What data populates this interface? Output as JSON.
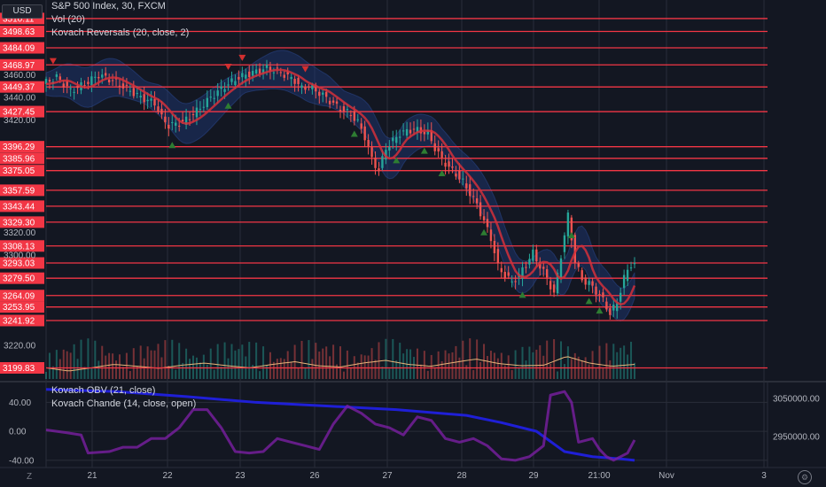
{
  "header": {
    "currency": "USD",
    "legend": {
      "symbol": "S&P 500 Index, 30, FXCM",
      "volume": "Vol (20)",
      "indicator": "Kovach Reversals (20, close, 2)"
    }
  },
  "lower_pane": {
    "legend": {
      "obv": "Kovach OBV (21, close)",
      "chande": "Kovach Chande (14, close, open)"
    }
  },
  "controls": {
    "zoom_icon": "Z",
    "settings_icon": "settings-gear-icon"
  },
  "colors": {
    "background": "#131722",
    "grid": "#2a2e39",
    "level_line": "#f23645",
    "candle_up": "#26a69a",
    "candle_down": "#ef5350",
    "band_fill": "#1e3a7a",
    "moving_average": "#d4303a",
    "volume_up": "#26a69a",
    "volume_down": "#ef5350",
    "volume_ma": "#e8b478",
    "signal_up": "#2e7d32",
    "signal_down": "#d32f2f",
    "obv_line": "#1f1fd6",
    "chande_line": "#7b1fa2"
  },
  "chart_data": [
    {
      "type": "candlestick",
      "y_ticks": [
        "3460.00",
        "3440.00",
        "3420.00",
        "3320.00",
        "3300.00",
        "3220.00"
      ],
      "y_range": [
        3190,
        3525
      ],
      "level_lines": [
        {
          "label": "3510.11",
          "value": 3510.11
        },
        {
          "label": "3498.63",
          "value": 3498.63
        },
        {
          "label": "3484.09",
          "value": 3484.09
        },
        {
          "label": "3468.97",
          "value": 3468.97
        },
        {
          "label": "3449.37",
          "value": 3449.37
        },
        {
          "label": "3427.45",
          "value": 3427.45
        },
        {
          "label": "3396.29",
          "value": 3396.29
        },
        {
          "label": "3385.96",
          "value": 3385.96
        },
        {
          "label": "3375.05",
          "value": 3375.05
        },
        {
          "label": "3357.59",
          "value": 3357.59
        },
        {
          "label": "3343.44",
          "value": 3343.44
        },
        {
          "label": "3329.30",
          "value": 3329.3
        },
        {
          "label": "3308.13",
          "value": 3308.13
        },
        {
          "label": "3293.03",
          "value": 3293.03
        },
        {
          "label": "3279.50",
          "value": 3279.5
        },
        {
          "label": "3264.09",
          "value": 3264.09
        },
        {
          "label": "3253.95",
          "value": 3253.95
        },
        {
          "label": "3241.92",
          "value": 3241.92
        },
        {
          "label": "3199.83",
          "value": 3199.83
        }
      ],
      "x_ticks": [
        "21",
        "22",
        "23",
        "26",
        "27",
        "28",
        "29",
        "21:00",
        "Nov",
        "3"
      ],
      "close_path": [
        [
          0,
          3452
        ],
        [
          4,
          3458
        ],
        [
          8,
          3446
        ],
        [
          12,
          3452
        ],
        [
          16,
          3460
        ],
        [
          20,
          3455
        ],
        [
          24,
          3448
        ],
        [
          28,
          3440
        ],
        [
          32,
          3435
        ],
        [
          34,
          3422
        ],
        [
          36,
          3415
        ],
        [
          40,
          3418
        ],
        [
          44,
          3428
        ],
        [
          48,
          3440
        ],
        [
          52,
          3450
        ],
        [
          56,
          3458
        ],
        [
          60,
          3462
        ],
        [
          64,
          3466
        ],
        [
          68,
          3462
        ],
        [
          72,
          3455
        ],
        [
          74,
          3448
        ],
        [
          76,
          3450
        ],
        [
          80,
          3442
        ],
        [
          84,
          3432
        ],
        [
          88,
          3425
        ],
        [
          90,
          3418
        ],
        [
          92,
          3405
        ],
        [
          94,
          3385
        ],
        [
          96,
          3375
        ],
        [
          98,
          3395
        ],
        [
          102,
          3408
        ],
        [
          106,
          3412
        ],
        [
          110,
          3408
        ],
        [
          112,
          3395
        ],
        [
          114,
          3385
        ],
        [
          116,
          3378
        ],
        [
          118,
          3372
        ],
        [
          120,
          3365
        ],
        [
          122,
          3355
        ],
        [
          124,
          3345
        ],
        [
          126,
          3330
        ],
        [
          128,
          3315
        ],
        [
          130,
          3290
        ],
        [
          132,
          3282
        ],
        [
          134,
          3276
        ],
        [
          136,
          3282
        ],
        [
          138,
          3292
        ],
        [
          140,
          3302
        ],
        [
          142,
          3290
        ],
        [
          144,
          3280
        ],
        [
          146,
          3265
        ],
        [
          148,
          3300
        ],
        [
          150,
          3335
        ],
        [
          152,
          3295
        ],
        [
          154,
          3278
        ],
        [
          156,
          3275
        ],
        [
          158,
          3268
        ],
        [
          160,
          3260
        ],
        [
          162,
          3248
        ],
        [
          164,
          3258
        ],
        [
          166,
          3280
        ],
        [
          168,
          3292
        ]
      ]
    },
    {
      "type": "bar",
      "title": "Vol (20)",
      "ma_profile": [
        0.42,
        0.3,
        0.42,
        0.55,
        0.48,
        0.4,
        0.52,
        0.6,
        0.5,
        0.42,
        0.55,
        0.65,
        0.5,
        0.45,
        0.6,
        0.7,
        0.55,
        0.48,
        0.62,
        0.75,
        0.58,
        0.5,
        0.52,
        0.85,
        0.6,
        0.48,
        0.55
      ]
    },
    {
      "type": "line",
      "y_ticks": [
        "40.00",
        "0.00",
        "-40.00"
      ],
      "y_range": [
        -50,
        65
      ],
      "right_ticks": [
        "3050000.00",
        "2950000.00"
      ],
      "series": [
        {
          "name": "Kovach OBV (21, close)",
          "values": [
            [
              0,
              58
            ],
            [
              20,
              55
            ],
            [
              40,
              48
            ],
            [
              60,
              40
            ],
            [
              80,
              35
            ],
            [
              100,
              30
            ],
            [
              120,
              22
            ],
            [
              130,
              12
            ],
            [
              140,
              0
            ],
            [
              148,
              -28
            ],
            [
              156,
              -35
            ],
            [
              164,
              -38
            ],
            [
              168,
              -40
            ]
          ]
        },
        {
          "name": "Kovach Chande (14, close, open)",
          "values": [
            [
              0,
              2
            ],
            [
              6,
              -2
            ],
            [
              10,
              -5
            ],
            [
              12,
              -30
            ],
            [
              18,
              -28
            ],
            [
              22,
              -22
            ],
            [
              26,
              -22
            ],
            [
              30,
              -10
            ],
            [
              34,
              -10
            ],
            [
              38,
              5
            ],
            [
              42,
              30
            ],
            [
              46,
              30
            ],
            [
              50,
              5
            ],
            [
              54,
              -28
            ],
            [
              58,
              -30
            ],
            [
              62,
              -28
            ],
            [
              66,
              -10
            ],
            [
              70,
              -15
            ],
            [
              74,
              -20
            ],
            [
              78,
              -25
            ],
            [
              82,
              10
            ],
            [
              86,
              35
            ],
            [
              90,
              25
            ],
            [
              94,
              10
            ],
            [
              98,
              5
            ],
            [
              102,
              -5
            ],
            [
              106,
              20
            ],
            [
              110,
              15
            ],
            [
              114,
              -10
            ],
            [
              118,
              -15
            ],
            [
              122,
              -10
            ],
            [
              126,
              -20
            ],
            [
              130,
              -38
            ],
            [
              134,
              -40
            ],
            [
              138,
              -35
            ],
            [
              142,
              -20
            ],
            [
              144,
              50
            ],
            [
              148,
              55
            ],
            [
              150,
              40
            ],
            [
              152,
              -15
            ],
            [
              156,
              -10
            ],
            [
              158,
              -25
            ],
            [
              160,
              -35
            ],
            [
              162,
              -40
            ],
            [
              166,
              -30
            ],
            [
              168,
              -12
            ]
          ]
        }
      ]
    }
  ]
}
